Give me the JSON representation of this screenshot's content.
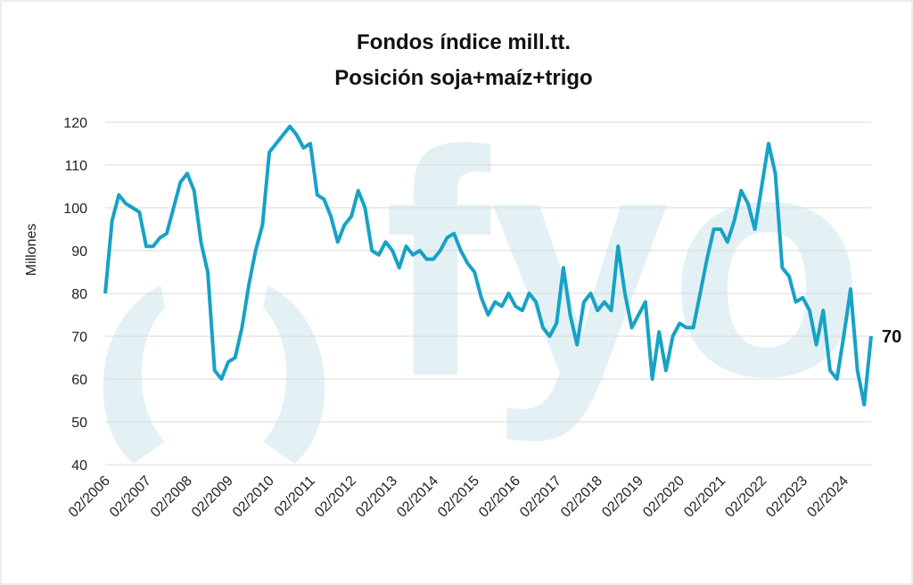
{
  "chart_data": {
    "type": "line",
    "title": "Fondos índice mill.tt.",
    "subtitle": "Posición soja+maíz+trigo",
    "y_label": "Millones",
    "watermark": "fyo",
    "categories": [
      "02/2006",
      null,
      null,
      null,
      null,
      null,
      "02/2007",
      null,
      null,
      null,
      null,
      null,
      "02/2008",
      null,
      null,
      null,
      null,
      null,
      "02/2009",
      null,
      null,
      null,
      null,
      null,
      "02/2010",
      null,
      null,
      null,
      null,
      null,
      "02/2011",
      null,
      null,
      null,
      null,
      null,
      "02/2012",
      null,
      null,
      null,
      null,
      null,
      "02/2013",
      null,
      null,
      null,
      null,
      null,
      "02/2014",
      null,
      null,
      null,
      null,
      null,
      "02/2015",
      null,
      null,
      null,
      null,
      null,
      "02/2016",
      null,
      null,
      null,
      null,
      null,
      "02/2017",
      null,
      null,
      null,
      null,
      null,
      "02/2018",
      null,
      null,
      null,
      null,
      null,
      "02/2019",
      null,
      null,
      null,
      null,
      null,
      "02/2020",
      null,
      null,
      null,
      null,
      null,
      "02/2021",
      null,
      null,
      null,
      null,
      null,
      "02/2022",
      null,
      null,
      null,
      null,
      null,
      "02/2023",
      null,
      null,
      null,
      null,
      null,
      "02/2024",
      null,
      null,
      null,
      null
    ],
    "series": [
      {
        "name": "Millones",
        "color": "#17a2c6",
        "values": [
          80,
          97,
          103,
          101,
          100,
          99,
          91,
          91,
          93,
          94,
          100,
          106,
          108,
          104,
          92,
          85,
          62,
          60,
          64,
          65,
          72,
          82,
          90,
          96,
          113,
          115,
          117,
          119,
          117,
          114,
          115,
          103,
          102,
          98,
          92,
          96,
          98,
          104,
          100,
          90,
          89,
          92,
          90,
          86,
          91,
          89,
          90,
          88,
          88,
          90,
          93,
          94,
          90,
          87,
          85,
          79,
          75,
          78,
          77,
          80,
          77,
          76,
          80,
          78,
          72,
          70,
          73,
          86,
          75,
          68,
          78,
          80,
          76,
          78,
          76,
          91,
          80,
          72,
          75,
          78,
          60,
          71,
          62,
          70,
          73,
          72,
          72,
          80,
          88,
          95,
          95,
          92,
          97,
          104,
          101,
          95,
          105,
          115,
          108,
          86,
          84,
          78,
          79,
          76,
          68,
          76,
          62,
          60,
          70,
          81,
          62,
          54,
          70
        ]
      }
    ],
    "ylim": [
      40,
      120
    ],
    "yticks": [
      40,
      50,
      60,
      70,
      80,
      90,
      100,
      110,
      120
    ],
    "grid": true
  }
}
